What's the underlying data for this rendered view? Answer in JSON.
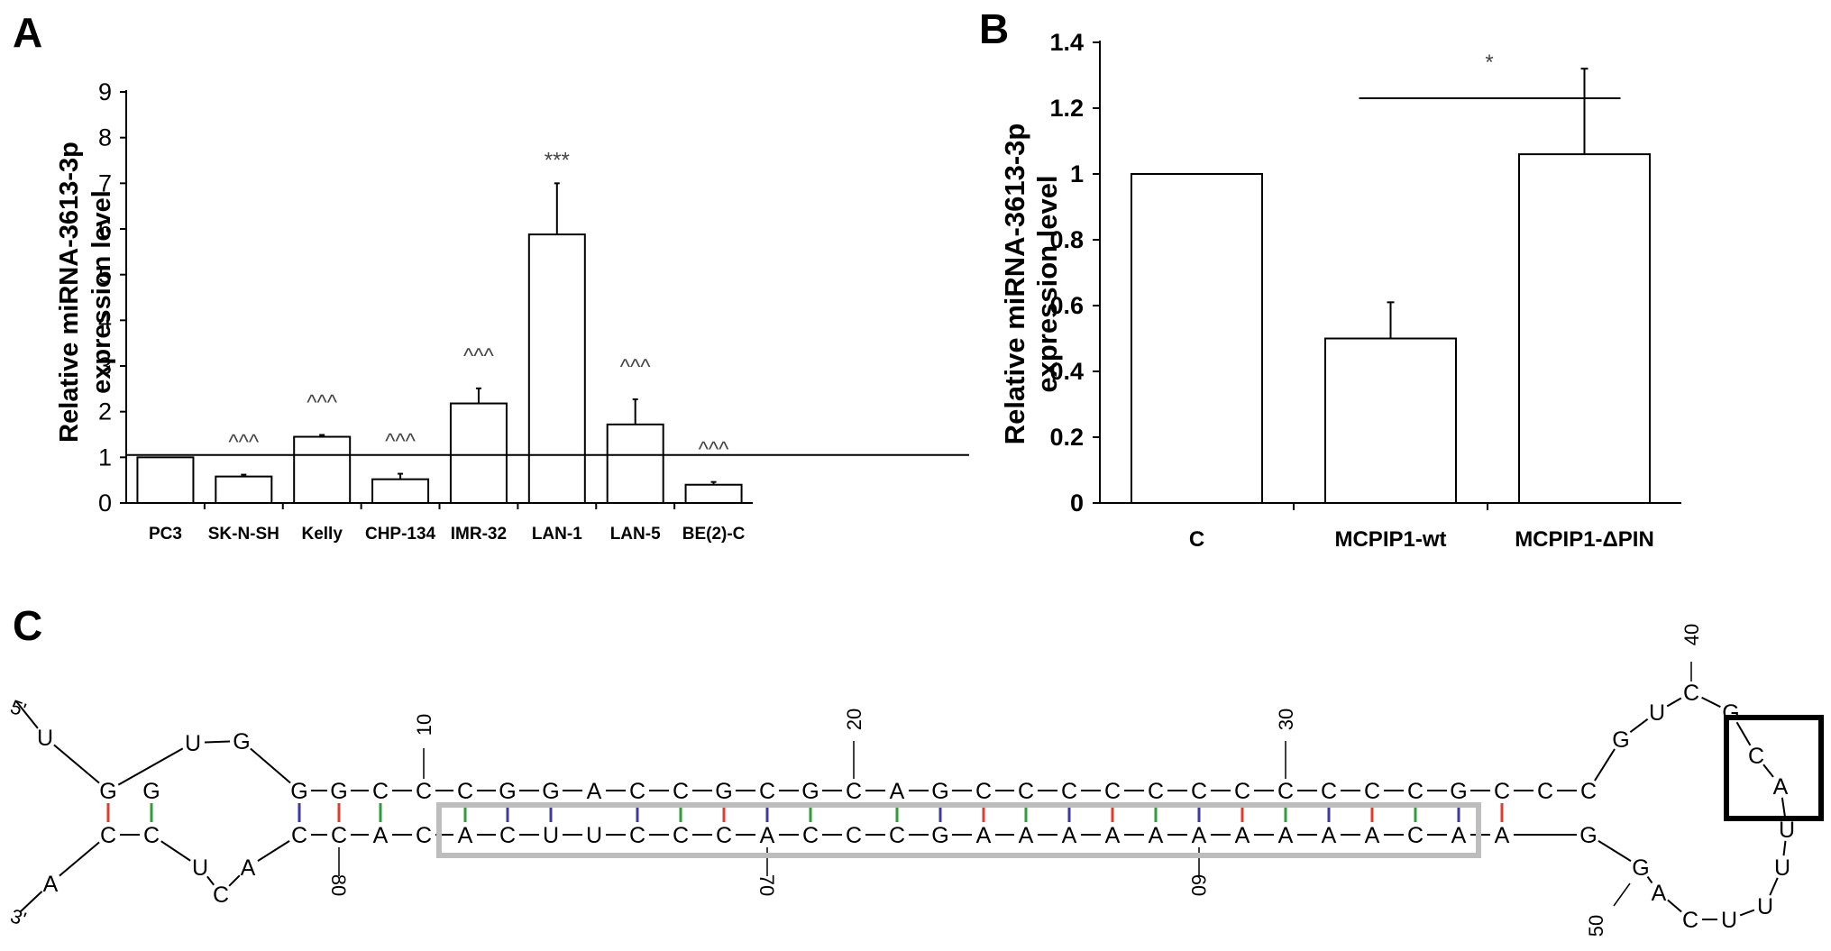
{
  "panels": {
    "a": "A",
    "b": "B",
    "c": "C"
  },
  "chart_data": [
    {
      "type": "bar",
      "categories": [
        "PC3",
        "SK-N-SH",
        "Kelly",
        "CHP-134",
        "IMR-32",
        "LAN-1",
        "LAN-5",
        "BE(2)-C"
      ],
      "values": [
        1.0,
        0.58,
        1.45,
        0.52,
        2.18,
        5.88,
        1.72,
        0.4
      ],
      "errors": [
        0,
        0.04,
        0.04,
        0.12,
        0.33,
        1.12,
        0.55,
        0.06
      ],
      "significance": [
        "",
        "^^^",
        "^^^",
        "^^^",
        "^^^",
        "***",
        "^^^",
        "^^^"
      ],
      "reference_line": 1.05,
      "ylabel": [
        "Relative miRNA-3613-3p",
        "expression level"
      ],
      "ylim": [
        0,
        9
      ],
      "yticks": [
        0,
        1,
        2,
        3,
        4,
        5,
        6,
        7,
        8,
        9
      ],
      "grid": false
    },
    {
      "type": "bar",
      "categories": [
        "C",
        "MCPIP1-wt",
        "MCPIP1-ΔPIN"
      ],
      "values": [
        1.0,
        0.5,
        1.06
      ],
      "errors": [
        0,
        0.11,
        0.26
      ],
      "significance_bracket": {
        "from": "MCPIP1-wt",
        "to": "MCPIP1-ΔPIN",
        "y": 1.23,
        "label": "*"
      },
      "ylabel": [
        "Relative miRNA-3613-3p",
        "expression level"
      ],
      "ylim": [
        0,
        1.4
      ],
      "yticks": [
        "0",
        "0.2",
        "0.4",
        "0.6",
        "0.8",
        "1",
        "1.2",
        "1.4"
      ],
      "grid": false
    }
  ],
  "structure": {
    "five_prime": "5'",
    "three_prime": "3'",
    "top_strand": [
      "G",
      "G",
      "G",
      "G",
      "C",
      "C",
      "C",
      "G",
      "G",
      "A",
      "C",
      "C",
      "G",
      "C",
      "G",
      "C",
      "A",
      "G",
      "C",
      "C",
      "C",
      "C",
      "C",
      "C",
      "C",
      "C",
      "C",
      "C",
      "C",
      "G",
      "C",
      "C",
      "C"
    ],
    "bottom_strand": [
      "C",
      "C",
      "C",
      "C",
      "A",
      "C",
      "A",
      "C",
      "U",
      "U",
      "C",
      "C",
      "C",
      "A",
      "C",
      "C",
      "C",
      "G",
      "A",
      "A",
      "A",
      "A",
      "A",
      "A",
      "A",
      "A",
      "A",
      "A",
      "C",
      "A",
      "A",
      "G"
    ],
    "left_loop_top": [
      "U",
      "G"
    ],
    "left_loop_bottom": [
      "U",
      "C",
      "A"
    ],
    "left_tail_top": [
      "U"
    ],
    "left_tail_bottom": [
      "A"
    ],
    "hairpin_loop": [
      "G",
      "U",
      "C",
      "G",
      "C",
      "A",
      "U",
      "U",
      "U",
      "U",
      "C",
      "A",
      "G"
    ],
    "position_labels": [
      "10",
      "20",
      "30",
      "40",
      "50",
      "60",
      "70",
      "80"
    ]
  }
}
